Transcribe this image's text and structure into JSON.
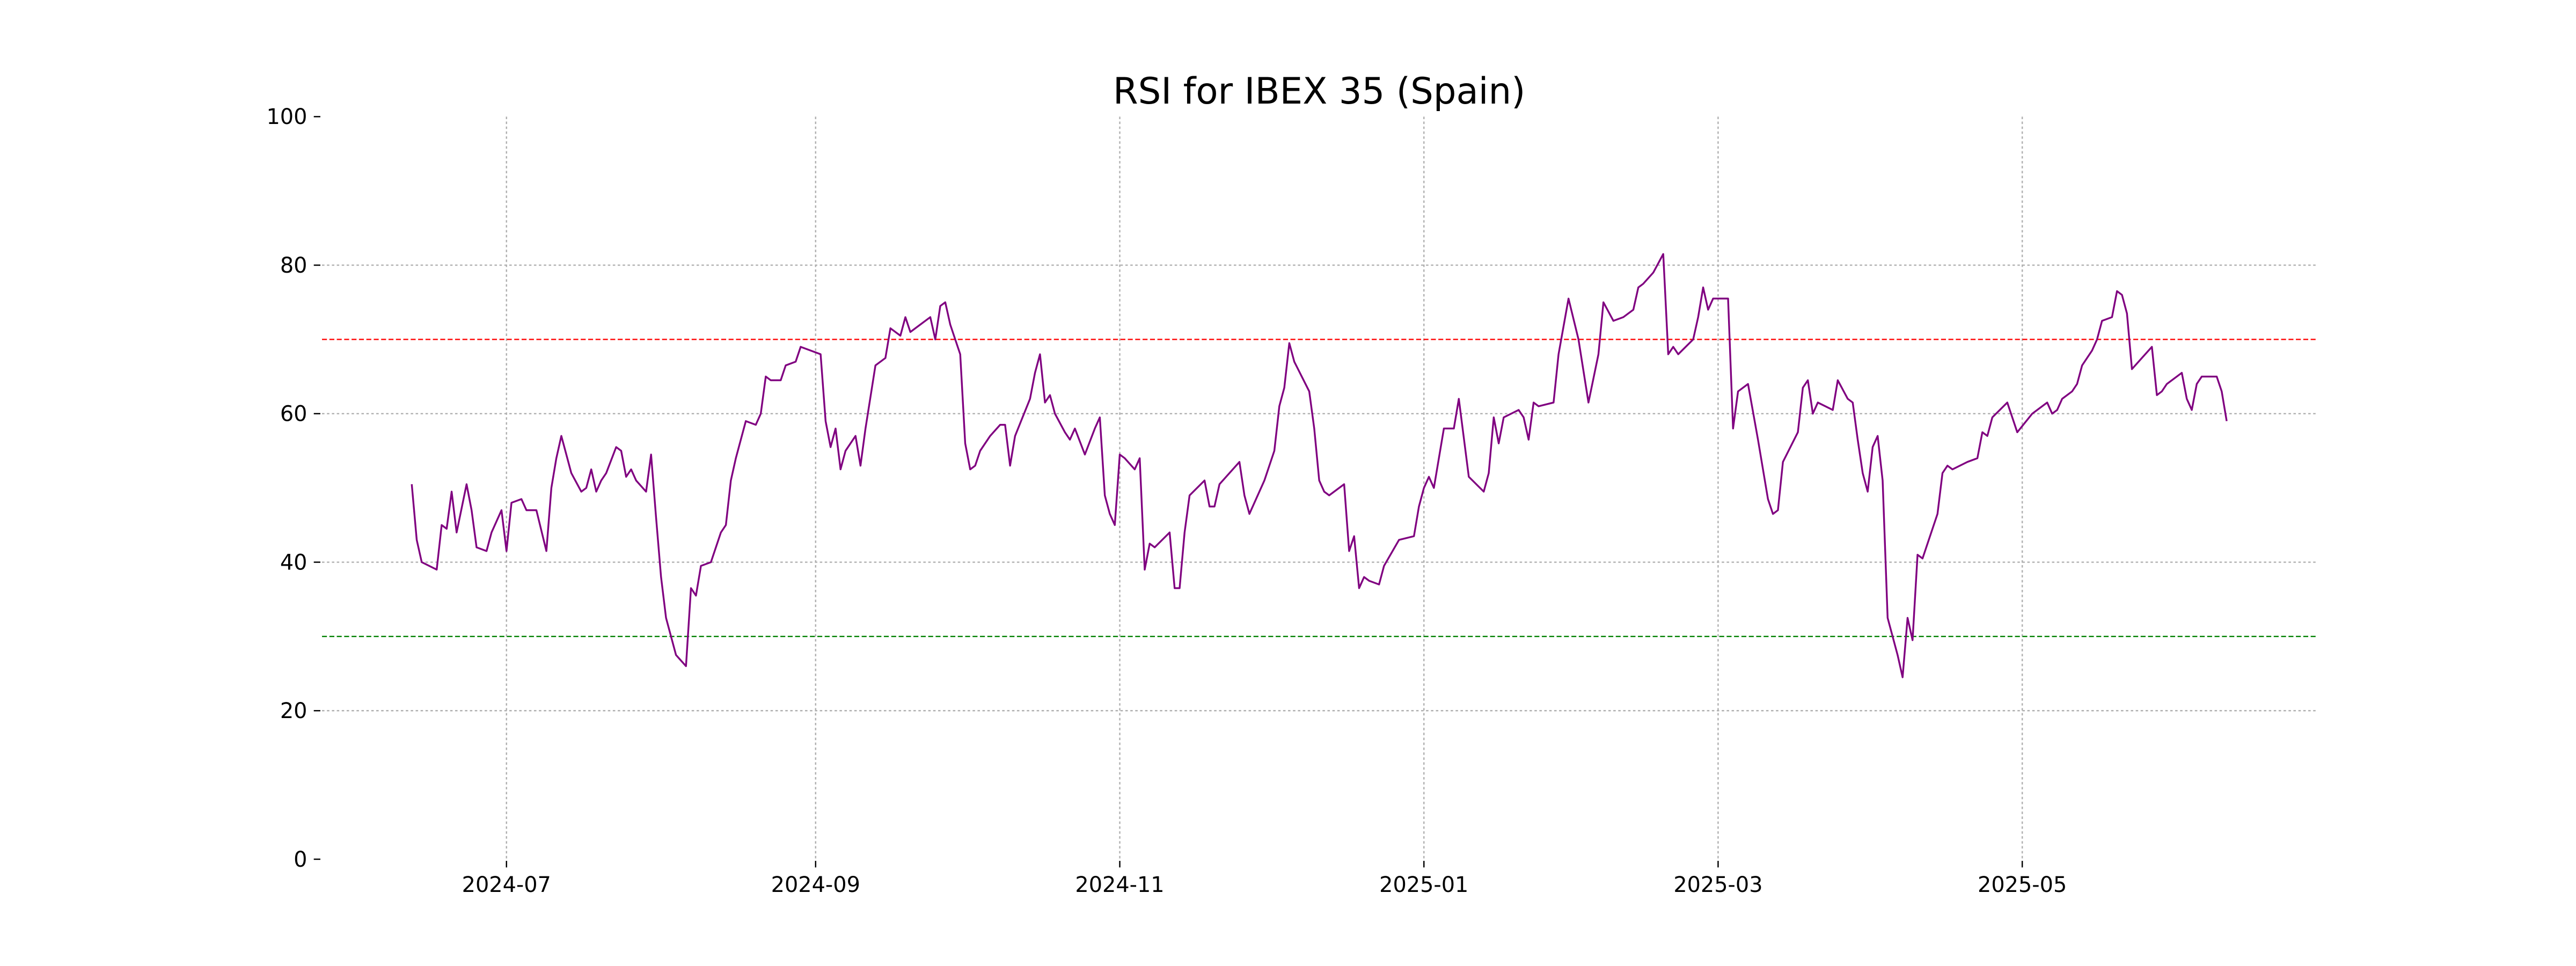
{
  "chart_data": {
    "type": "line",
    "title": "RSI for IBEX 35 (Spain)",
    "x": [
      163,
      164,
      165,
      168,
      169,
      170,
      171,
      172,
      174,
      175,
      176,
      178,
      179,
      181,
      182,
      183,
      185,
      186,
      188,
      190,
      191,
      192,
      193,
      194,
      195,
      197,
      198,
      199,
      200,
      201,
      202,
      204,
      205,
      206,
      207,
      208,
      210,
      211,
      212,
      213,
      214,
      215,
      216,
      218,
      219,
      220,
      221,
      223,
      225,
      226,
      227,
      228,
      229,
      230,
      232,
      233,
      234,
      235,
      237,
      238,
      240,
      241,
      243,
      245,
      246,
      247,
      248,
      249,
      250,
      252,
      253,
      254,
      256,
      258,
      259,
      261,
      262,
      263,
      265,
      267,
      268,
      269,
      270,
      271,
      273,
      274,
      275,
      276,
      277,
      279,
      281,
      282,
      283,
      284,
      287,
      288,
      289,
      290,
      291,
      292,
      294,
      295,
      296,
      298,
      300,
      301,
      302,
      303,
      304,
      305,
      306,
      308,
      309,
      310,
      311,
      312,
      315,
      316,
      317,
      318,
      319,
      322,
      323,
      324,
      325,
      327,
      329,
      330,
      331,
      334,
      336,
      337,
      338,
      339,
      340,
      343,
      344,
      345,
      346,
      347,
      350,
      351,
      352,
      353,
      354,
      355,
      357,
      358,
      361,
      364,
      365,
      366,
      367,
      368,
      370,
      372,
      373,
      375,
      378,
      379,
      380,
      381,
      382,
      385,
      386,
      387,
      388,
      389,
      392,
      393,
      395,
      397,
      399,
      401,
      402,
      404,
      406,
      408,
      409,
      410,
      412,
      414,
      415,
      416,
      417,
      420,
      421,
      422,
      423,
      424,
      427,
      428,
      429,
      431,
      433,
      435,
      436,
      437,
      438,
      441,
      442,
      443,
      444,
      445,
      448,
      449,
      451,
      452,
      453,
      454,
      455,
      456,
      457,
      458,
      459,
      461,
      462,
      463,
      464,
      465,
      466,
      469,
      470,
      471,
      472,
      475,
      477,
      478,
      479,
      480,
      483,
      485,
      488,
      491,
      492,
      493,
      494,
      496,
      497,
      498,
      500,
      501,
      502,
      504,
      505,
      506,
      507,
      508,
      510,
      512,
      513,
      514,
      515,
      518,
      519,
      520,
      521,
      522,
      525,
      526,
      527
    ],
    "series": [
      {
        "color": "#800080",
        "values": [
          50.5,
          43,
          40,
          39,
          45,
          44.5,
          49.5,
          44,
          50.5,
          47,
          42,
          41.5,
          44,
          47,
          41.5,
          48,
          48.5,
          47,
          47,
          41.5,
          50,
          54,
          57,
          54.5,
          52,
          49.5,
          50,
          52.5,
          49.5,
          51,
          52,
          55.5,
          55,
          51.5,
          52.5,
          51,
          49.5,
          54.5,
          46,
          38,
          32.5,
          30,
          27.5,
          26,
          36.5,
          35.5,
          39.5,
          40,
          44,
          45,
          51,
          54,
          56.5,
          59,
          58.5,
          60,
          65,
          64.5,
          64.5,
          66.5,
          67,
          69,
          68.5,
          68,
          59,
          55.5,
          58,
          52.5,
          55,
          57,
          53,
          58,
          66.5,
          67.5,
          71.5,
          70.5,
          73,
          71,
          72,
          73,
          70,
          74.5,
          75,
          72,
          68,
          56,
          52.5,
          53,
          55,
          57,
          58.5,
          58.5,
          53,
          57,
          62,
          65.5,
          68,
          61.5,
          62.5,
          60,
          57.5,
          56.5,
          58,
          54.5,
          58,
          59.5,
          49,
          46.5,
          45,
          54.5,
          54,
          52.5,
          54,
          39,
          42.5,
          42,
          44,
          36.5,
          36.5,
          44,
          49,
          51,
          47.5,
          47.5,
          50.5,
          52,
          53.5,
          49,
          46.5,
          51,
          55,
          61,
          63.5,
          69.5,
          67,
          63,
          58,
          51,
          49.5,
          49,
          50.5,
          41.5,
          43.5,
          36.5,
          38,
          37.5,
          37,
          39.5,
          43,
          43.5,
          47.5,
          50,
          51.5,
          50,
          58,
          58,
          62,
          51.5,
          49.5,
          52,
          59.5,
          56,
          59.5,
          60.5,
          59.5,
          56.5,
          61.5,
          61,
          61.5,
          68,
          75.5,
          70,
          61.5,
          68,
          75,
          72.5,
          73,
          74,
          77,
          77.5,
          79,
          81.5,
          68,
          69,
          68,
          70,
          73,
          77,
          74,
          75.5,
          75.5,
          58,
          63,
          64,
          56.5,
          48.5,
          46.5,
          47,
          53.5,
          57.5,
          63.5,
          64.5,
          60,
          61.5,
          60.5,
          64.5,
          62,
          61.5,
          56.5,
          52,
          49.5,
          55.5,
          57,
          51,
          32.5,
          27.5,
          24.5,
          32.5,
          29.5,
          41,
          40.5,
          46.5,
          52,
          53,
          52.5,
          53.5,
          54,
          57.5,
          57,
          59.5,
          61.5,
          57.5,
          60,
          61.5,
          60,
          60.5,
          62,
          63,
          64,
          66.5,
          68.5,
          70,
          72.5,
          73,
          76.5,
          76,
          73.5,
          66,
          67.5,
          69,
          62.5,
          63,
          64,
          65.5,
          62,
          60.5,
          64,
          65,
          65,
          63,
          59
        ]
      }
    ],
    "xlim": [
      145,
      545
    ],
    "xticks": [
      {
        "value": 182,
        "label": "2024-07"
      },
      {
        "value": 244,
        "label": "2024-09"
      },
      {
        "value": 305,
        "label": "2024-11"
      },
      {
        "value": 366,
        "label": "2025-01"
      },
      {
        "value": 425,
        "label": "2025-03"
      },
      {
        "value": 486,
        "label": "2025-05"
      }
    ],
    "ylim": [
      0,
      100
    ],
    "yticks": [
      0,
      20,
      40,
      60,
      80,
      100
    ],
    "grid": true,
    "reference_lines": [
      {
        "value": 70,
        "color": "#ff0000"
      },
      {
        "value": 30,
        "color": "#008000"
      }
    ]
  }
}
